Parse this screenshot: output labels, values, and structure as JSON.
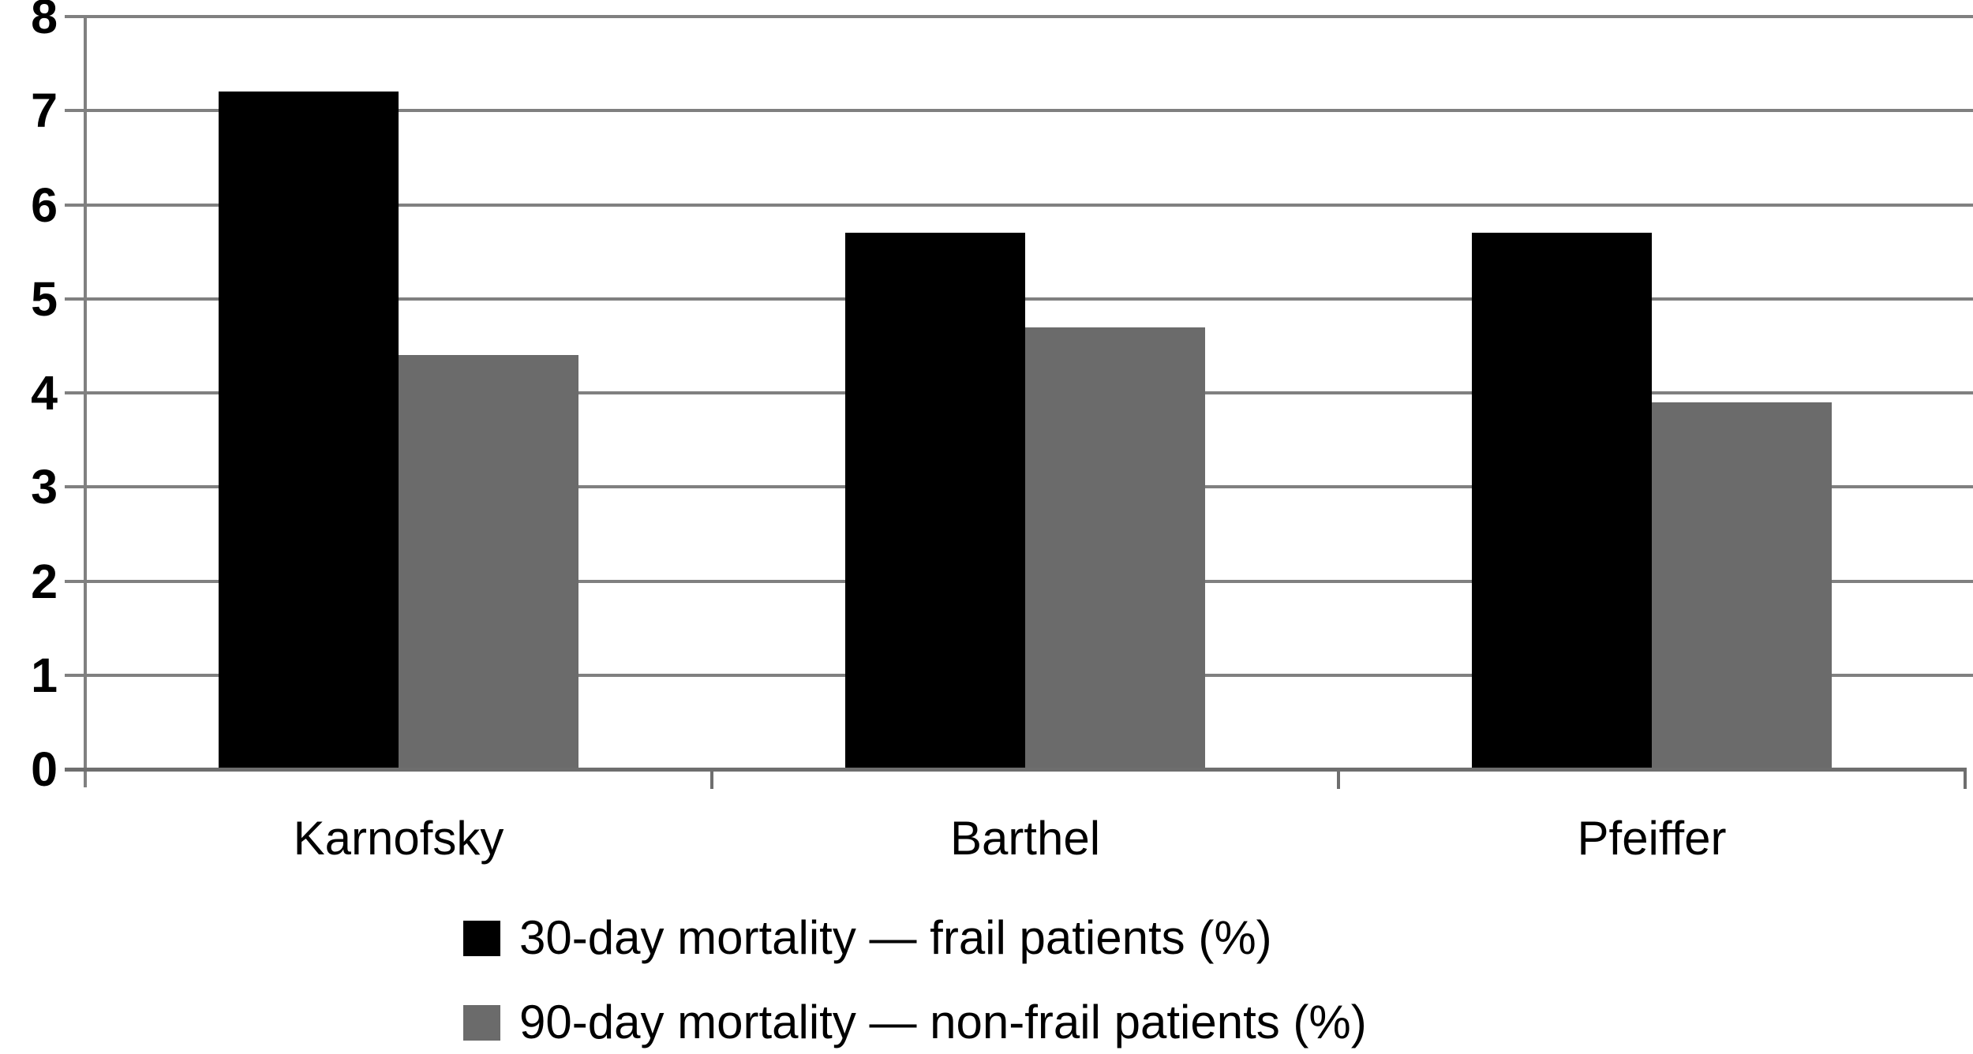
{
  "chart_data": {
    "type": "bar",
    "categories": [
      "Karnofsky",
      "Barthel",
      "Pfeiffer"
    ],
    "series": [
      {
        "name": "30-day mortality — frail patients (%)",
        "color": "#000000",
        "values": [
          7.2,
          5.7,
          5.7
        ]
      },
      {
        "name": "90-day mortality — non-frail patients (%)",
        "color": "#6b6b6b",
        "values": [
          4.4,
          4.7,
          3.9
        ]
      }
    ],
    "title": "",
    "xlabel": "",
    "ylabel": "",
    "ylim": [
      0,
      8
    ],
    "yticks": [
      0,
      1,
      2,
      3,
      4,
      5,
      6,
      7,
      8
    ],
    "grid": true,
    "legend_position": "bottom-left",
    "colors": {
      "gridline": "#808080",
      "axis": "#6e6e6e",
      "text": "#000000",
      "background": "#ffffff"
    }
  }
}
